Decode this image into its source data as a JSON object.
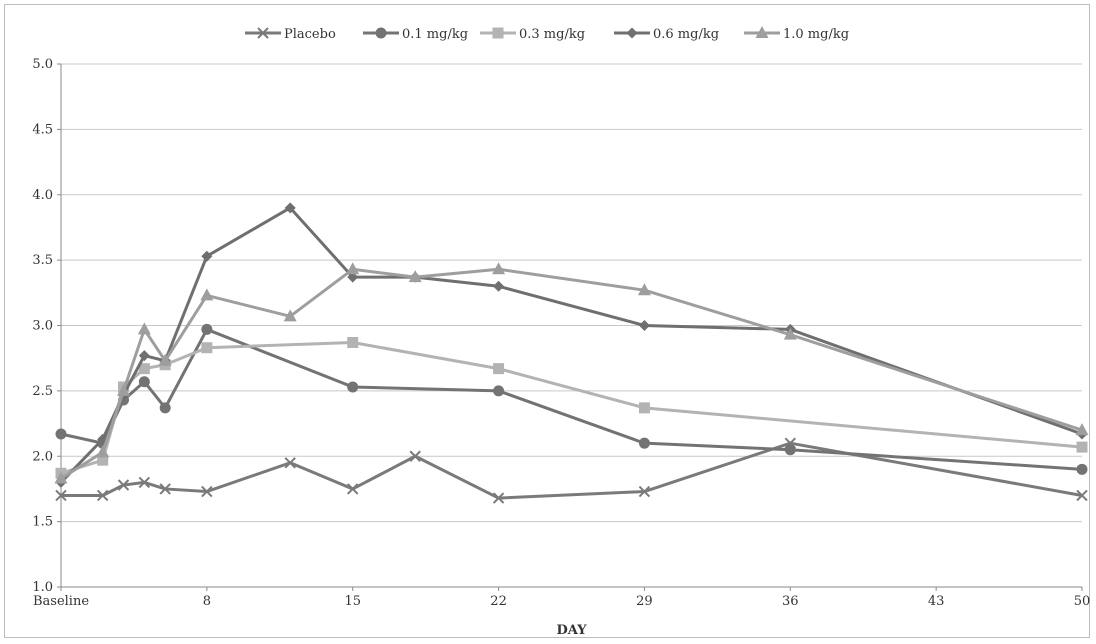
{
  "chart_data": {
    "type": "line",
    "title": "",
    "xlabel": "DAY",
    "ylabel": "",
    "ylim": [
      1.0,
      5.0
    ],
    "xlim": [
      1,
      50
    ],
    "y_ticks": [
      "1.0",
      "1.5",
      "2.0",
      "2.5",
      "3.0",
      "3.5",
      "4.0",
      "4.5",
      "5.0"
    ],
    "x_ticks": [
      {
        "x": 1,
        "label": "Baseline"
      },
      {
        "x": 8,
        "label": "8"
      },
      {
        "x": 15,
        "label": "15"
      },
      {
        "x": 22,
        "label": "22"
      },
      {
        "x": 29,
        "label": "29"
      },
      {
        "x": 36,
        "label": "36"
      },
      {
        "x": 43,
        "label": "43"
      },
      {
        "x": 50,
        "label": "50"
      }
    ],
    "grid": true,
    "legend_position": "top",
    "series": [
      {
        "name": "Placebo",
        "marker": "x",
        "color": "#7a7a7a",
        "points": [
          [
            1,
            1.7
          ],
          [
            3,
            1.7
          ],
          [
            4,
            1.78
          ],
          [
            5,
            1.8
          ],
          [
            6,
            1.75
          ],
          [
            8,
            1.73
          ],
          [
            12,
            1.95
          ],
          [
            15,
            1.75
          ],
          [
            18,
            2.0
          ],
          [
            22,
            1.68
          ],
          [
            29,
            1.73
          ],
          [
            36,
            2.1
          ],
          [
            50,
            1.7
          ]
        ]
      },
      {
        "name": "0.1 mg/kg",
        "marker": "circle",
        "color": "#737373",
        "points": [
          [
            1,
            2.17
          ],
          [
            3,
            2.1
          ],
          [
            4,
            2.43
          ],
          [
            5,
            2.57
          ],
          [
            6,
            2.37
          ],
          [
            8,
            2.97
          ],
          [
            15,
            2.53
          ],
          [
            22,
            2.5
          ],
          [
            29,
            2.1
          ],
          [
            36,
            2.05
          ],
          [
            50,
            1.9
          ]
        ]
      },
      {
        "name": "0.3 mg/kg",
        "marker": "square",
        "color": "#b3b3b3",
        "points": [
          [
            1,
            1.87
          ],
          [
            3,
            1.97
          ],
          [
            4,
            2.53
          ],
          [
            5,
            2.67
          ],
          [
            6,
            2.7
          ],
          [
            8,
            2.83
          ],
          [
            15,
            2.87
          ],
          [
            22,
            2.67
          ],
          [
            29,
            2.37
          ],
          [
            50,
            2.07
          ]
        ]
      },
      {
        "name": "0.6 mg/kg",
        "marker": "diamond",
        "color": "#6f6f6f",
        "points": [
          [
            1,
            1.8
          ],
          [
            3,
            2.13
          ],
          [
            4,
            2.47
          ],
          [
            5,
            2.77
          ],
          [
            6,
            2.73
          ],
          [
            8,
            3.53
          ],
          [
            12,
            3.9
          ],
          [
            15,
            3.37
          ],
          [
            18,
            3.37
          ],
          [
            22,
            3.3
          ],
          [
            29,
            3.0
          ],
          [
            36,
            2.97
          ],
          [
            50,
            2.17
          ]
        ]
      },
      {
        "name": "1.0 mg/kg",
        "marker": "triangle",
        "color": "#9e9e9e",
        "points": [
          [
            1,
            1.83
          ],
          [
            3,
            2.03
          ],
          [
            4,
            2.5
          ],
          [
            5,
            2.97
          ],
          [
            6,
            2.73
          ],
          [
            8,
            3.23
          ],
          [
            12,
            3.07
          ],
          [
            15,
            3.43
          ],
          [
            18,
            3.37
          ],
          [
            22,
            3.43
          ],
          [
            29,
            3.27
          ],
          [
            36,
            2.93
          ],
          [
            50,
            2.2
          ]
        ]
      }
    ]
  }
}
